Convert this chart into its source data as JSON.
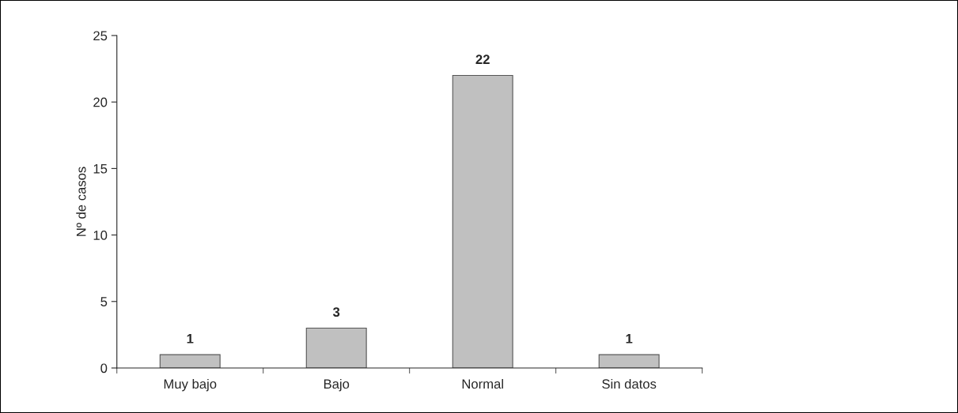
{
  "chart_data": {
    "type": "bar",
    "ylabel": "Nº de casos",
    "categories": [
      "Muy bajo",
      "Bajo",
      "Normal",
      "Sin datos"
    ],
    "values": [
      1,
      3,
      22,
      1
    ],
    "color": "#c0c0c0",
    "ylim": [
      0,
      25
    ],
    "yticks": [
      0,
      5,
      10,
      15,
      20,
      25
    ],
    "data_labels": true,
    "grid": false
  }
}
